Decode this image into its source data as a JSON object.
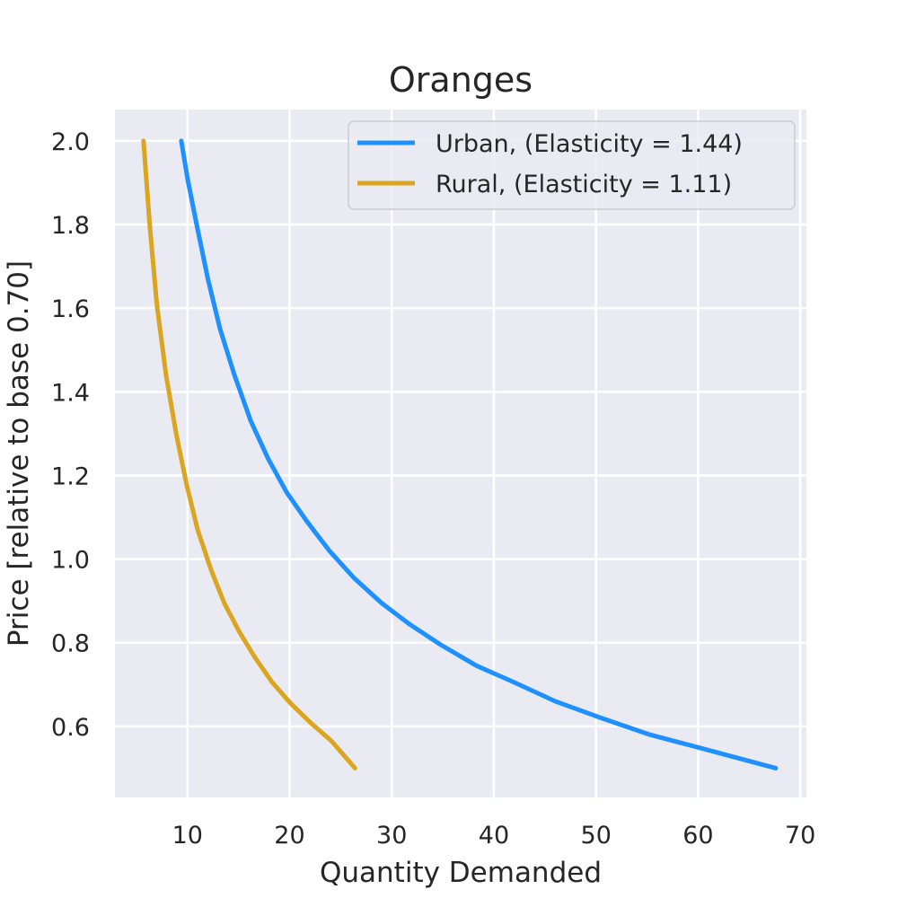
{
  "chart_data": {
    "type": "line",
    "title": "Oranges",
    "xlabel": "Quantity Demanded",
    "ylabel": "Price [relative to base 0.70]",
    "xlim": [
      2.9,
      70.6
    ],
    "ylim": [
      0.43,
      2.075
    ],
    "xticks": [
      10,
      20,
      30,
      40,
      50,
      60,
      70
    ],
    "yticks": [
      0.6,
      0.8,
      1.0,
      1.2,
      1.4,
      1.6,
      1.8,
      2.0
    ],
    "xtick_labels": [
      "10",
      "20",
      "30",
      "40",
      "50",
      "60",
      "70"
    ],
    "ytick_labels": [
      "0.6",
      "0.8",
      "1.0",
      "1.2",
      "1.4",
      "1.6",
      "1.8",
      "2.0"
    ],
    "grid": true,
    "legend_position": "top-right",
    "series": [
      {
        "name": "Urban, (Elasticity = 1.44)",
        "color": "#1e90ff",
        "points": [
          [
            9.4,
            2.0
          ],
          [
            10.0,
            1.91
          ],
          [
            10.9,
            1.8
          ],
          [
            12.0,
            1.67
          ],
          [
            13.2,
            1.55
          ],
          [
            14.6,
            1.44
          ],
          [
            16.2,
            1.33
          ],
          [
            17.9,
            1.24
          ],
          [
            19.7,
            1.16
          ],
          [
            21.7,
            1.09
          ],
          [
            23.9,
            1.02
          ],
          [
            26.3,
            0.955
          ],
          [
            29.0,
            0.895
          ],
          [
            31.7,
            0.845
          ],
          [
            34.8,
            0.795
          ],
          [
            38.3,
            0.745
          ],
          [
            42.0,
            0.705
          ],
          [
            46.0,
            0.66
          ],
          [
            50.5,
            0.62
          ],
          [
            55.3,
            0.58
          ],
          [
            60.7,
            0.545
          ],
          [
            67.6,
            0.5
          ]
        ]
      },
      {
        "name": "Rural, (Elasticity = 1.11)",
        "color": "#daa520",
        "points": [
          [
            5.7,
            2.0
          ],
          [
            6.3,
            1.8
          ],
          [
            7.0,
            1.61
          ],
          [
            7.9,
            1.44
          ],
          [
            8.9,
            1.3
          ],
          [
            9.9,
            1.18
          ],
          [
            11.0,
            1.07
          ],
          [
            12.3,
            0.975
          ],
          [
            13.6,
            0.895
          ],
          [
            15.1,
            0.825
          ],
          [
            16.6,
            0.765
          ],
          [
            18.3,
            0.705
          ],
          [
            20.1,
            0.655
          ],
          [
            22.0,
            0.61
          ],
          [
            24.1,
            0.565
          ],
          [
            26.4,
            0.5
          ]
        ]
      }
    ],
    "colors": {
      "plot_background": "#eaeaf2",
      "grid": "#ffffff",
      "text": "#262626"
    }
  }
}
